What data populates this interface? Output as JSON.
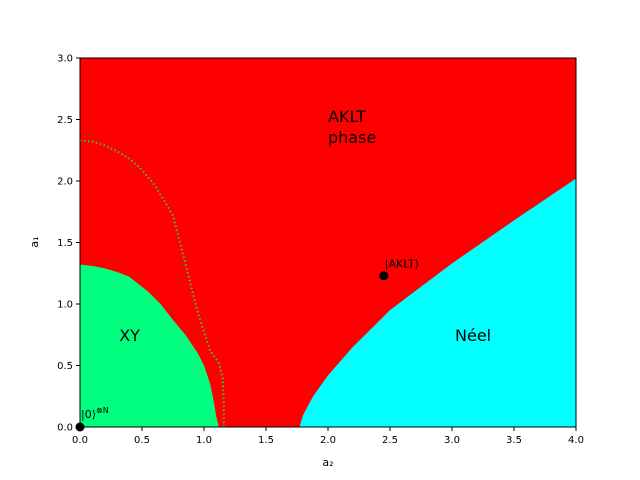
{
  "chart_data": {
    "type": "area",
    "xlabel": "a₂",
    "ylabel": "a₁",
    "xlim": [
      0,
      4
    ],
    "ylim": [
      0,
      3
    ],
    "xticks": [
      "0.0",
      "0.5",
      "1.0",
      "1.5",
      "2.0",
      "2.5",
      "3.0",
      "3.5",
      "4.0"
    ],
    "yticks": [
      "0.0",
      "0.5",
      "1.0",
      "1.5",
      "2.0",
      "2.5",
      "3.0"
    ],
    "grid": false,
    "regions": [
      {
        "name": "AKLT phase",
        "label_lines": [
          "AKLT",
          "phase"
        ],
        "label_at": [
          2.0,
          2.4
        ],
        "color": "#ff0000",
        "fill": "background"
      },
      {
        "name": "XY",
        "label_lines": [
          "XY"
        ],
        "label_at": [
          0.4,
          0.75
        ],
        "color": "#00ff7f",
        "boundary": [
          [
            0,
            1.32
          ],
          [
            0.1,
            1.31
          ],
          [
            0.2,
            1.29
          ],
          [
            0.3,
            1.26
          ],
          [
            0.4,
            1.22
          ],
          [
            0.5,
            1.14
          ],
          [
            0.55,
            1.1
          ],
          [
            0.65,
            1.0
          ],
          [
            0.75,
            0.87
          ],
          [
            0.85,
            0.75
          ],
          [
            0.95,
            0.6
          ],
          [
            1.0,
            0.5
          ],
          [
            1.05,
            0.35
          ],
          [
            1.08,
            0.2
          ],
          [
            1.1,
            0.08
          ],
          [
            1.12,
            0.0
          ]
        ]
      },
      {
        "name": "Néel",
        "label_lines": [
          "Néel"
        ],
        "label_at": [
          3.17,
          0.75
        ],
        "color": "#00ffff",
        "boundary": [
          [
            1.77,
            0.0
          ],
          [
            1.8,
            0.1
          ],
          [
            1.88,
            0.25
          ],
          [
            2.0,
            0.42
          ],
          [
            2.2,
            0.65
          ],
          [
            2.5,
            0.95
          ],
          [
            3.0,
            1.33
          ],
          [
            3.5,
            1.68
          ],
          [
            4.0,
            2.02
          ]
        ]
      }
    ],
    "dotted_boundary": {
      "color": "#2ecc40",
      "points": [
        [
          0,
          2.33
        ],
        [
          0.1,
          2.32
        ],
        [
          0.2,
          2.29
        ],
        [
          0.3,
          2.24
        ],
        [
          0.4,
          2.18
        ],
        [
          0.5,
          2.09
        ],
        [
          0.6,
          1.97
        ],
        [
          0.75,
          1.72
        ],
        [
          0.85,
          1.33
        ],
        [
          0.95,
          0.93
        ],
        [
          1.05,
          0.62
        ],
        [
          1.12,
          0.52
        ],
        [
          1.15,
          0.4
        ],
        [
          1.16,
          0.2
        ],
        [
          1.16,
          0.0
        ]
      ]
    },
    "points": [
      {
        "name": "|AKLT⟩",
        "label": "|AKLT⟩",
        "x": 2.45,
        "y": 1.23
      },
      {
        "name": "|0⟩⊗N",
        "label": "|0⟩",
        "superscript": "⊗N",
        "x": 0.0,
        "y": 0.0
      }
    ]
  }
}
